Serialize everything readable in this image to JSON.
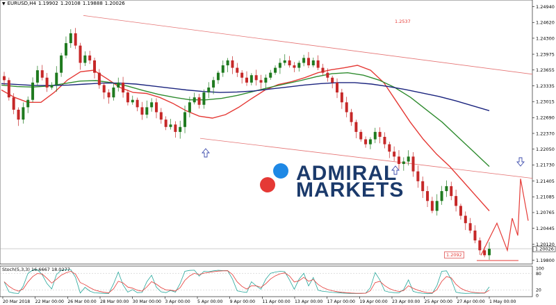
{
  "header": {
    "symbol": "EURUSD,H4",
    "ohlc": [
      "1.19902",
      "1.20108",
      "1.19888",
      "1.20026"
    ]
  },
  "logo": {
    "line1": "ADMIRAL",
    "line2": "MARKETS",
    "colors": [
      "#1e88e5",
      "#e53935"
    ]
  },
  "annotations": {
    "channel_top_price": "1.2537",
    "low_price": "1.2092"
  },
  "colors": {
    "candle_up": "#1f7a1f",
    "candle_down": "#c62828",
    "ma_fast": "#e53935",
    "ma_mid": "#2e8b2e",
    "ma_slow": "#1a237e",
    "channel": "#e57373",
    "projection": "#e53935",
    "arrow": "#3949ab"
  },
  "oscillator": {
    "label": "Stoch(5,3,3) 16.6667 18.0277",
    "levels": [
      "100",
      "80",
      "20",
      "0"
    ]
  },
  "chart_data": [
    {
      "type": "candlestick",
      "title": "EURUSD,H4",
      "price_axis": {
        "ticks": [
          "1.24940",
          "1.24620",
          "1.24300",
          "1.23975",
          "1.23655",
          "1.23335",
          "1.23015",
          "1.22690",
          "1.22370",
          "1.22050",
          "1.21730",
          "1.21405",
          "1.21085",
          "1.20765",
          "1.20445",
          "1.20120",
          "1.19800"
        ],
        "current_price": "1.20026",
        "range": [
          1.1975,
          1.2499
        ]
      },
      "time_axis": {
        "labels": [
          "20 Mar 2018",
          "22 Mar 00:00",
          "26 Mar 00:00",
          "28 Mar 00:00",
          "30 Mar 00:00",
          "3 Apr 00:00",
          "5 Apr 00:00",
          "9 Apr 00:00",
          "11 Apr 00:00",
          "13 Apr 00:00",
          "17 Apr 00:00",
          "19 Apr 00:00",
          "23 Apr 00:00",
          "25 Apr 00:00",
          "27 Apr 00:00",
          "1 May 00:00"
        ]
      },
      "close_path": [
        1.2345,
        1.231,
        1.2285,
        1.2265,
        1.229,
        1.2305,
        1.234,
        1.2365,
        1.235,
        1.233,
        1.2335,
        1.236,
        1.2395,
        1.242,
        1.244,
        1.2415,
        1.238,
        1.2395,
        1.2385,
        1.236,
        1.2335,
        1.232,
        1.231,
        1.233,
        1.234,
        1.232,
        1.23,
        1.2305,
        1.229,
        1.2275,
        1.229,
        1.23,
        1.228,
        1.2265,
        1.225,
        1.2255,
        1.224,
        1.225,
        1.228,
        1.23,
        1.231,
        1.2295,
        1.232,
        1.233,
        1.2345,
        1.236,
        1.2375,
        1.2385,
        1.237,
        1.236,
        1.235,
        1.234,
        1.2355,
        1.2345,
        1.234,
        1.235,
        1.236,
        1.237,
        1.238,
        1.2385,
        1.2375,
        1.237,
        1.238,
        1.239,
        1.2375,
        1.2385,
        1.237,
        1.236,
        1.235,
        1.234,
        1.232,
        1.23,
        1.228,
        1.226,
        1.224,
        1.2225,
        1.2215,
        1.2225,
        1.224,
        1.223,
        1.2215,
        1.22,
        1.219,
        1.2175,
        1.218,
        1.219,
        1.216,
        1.214,
        1.212,
        1.21,
        1.208,
        1.21,
        1.212,
        1.213,
        1.211,
        1.209,
        1.207,
        1.2055,
        1.204,
        1.202,
        1.2,
        1.199,
        1.2003
      ],
      "moving_averages": [
        {
          "name": "MA fast",
          "color": "#e53935",
          "values": [
            1.2325,
            1.231,
            1.23,
            1.23,
            1.232,
            1.2345,
            1.2362,
            1.2365,
            1.2348,
            1.233,
            1.232,
            1.2318,
            1.231,
            1.2298,
            1.2283,
            1.2272,
            1.2268,
            1.2275,
            1.229,
            1.2308,
            1.2325,
            1.2336,
            1.2342,
            1.235,
            1.236,
            1.2366,
            1.237,
            1.2375,
            1.2365,
            1.234,
            1.23,
            1.226,
            1.2225,
            1.2195,
            1.217,
            1.214,
            1.211,
            1.208
          ]
        },
        {
          "name": "MA mid",
          "color": "#2e8b2e",
          "values": [
            1.2335,
            1.2332,
            1.2331,
            1.2333,
            1.2338,
            1.2343,
            1.2344,
            1.234,
            1.2333,
            1.2324,
            1.2316,
            1.231,
            1.2305,
            1.2305,
            1.2308,
            1.2314,
            1.2322,
            1.233,
            1.2337,
            1.2344,
            1.2352,
            1.2358,
            1.236,
            1.2355,
            1.2345,
            1.233,
            1.231,
            1.2285,
            1.226,
            1.223,
            1.22,
            1.217
          ]
        },
        {
          "name": "MA slow",
          "color": "#1a237e",
          "values": [
            1.2338,
            1.2336,
            1.2334,
            1.2334,
            1.2335,
            1.2337,
            1.2339,
            1.2339,
            1.2337,
            1.2333,
            1.2329,
            1.2325,
            1.2322,
            1.232,
            1.2321,
            1.2323,
            1.2327,
            1.2331,
            1.2335,
            1.2338,
            1.234,
            1.234,
            1.2337,
            1.2332,
            1.2326,
            1.2319,
            1.2312,
            1.2303,
            1.2293,
            1.2283
          ]
        }
      ],
      "channel": {
        "upper": [
          1.2476,
          1.2357
        ],
        "lower": [
          1.2227,
          1.2146
        ]
      },
      "projection": [
        1.199,
        1.2055,
        1.2,
        1.2065,
        1.203,
        1.2145,
        1.206
      ]
    }
  ]
}
